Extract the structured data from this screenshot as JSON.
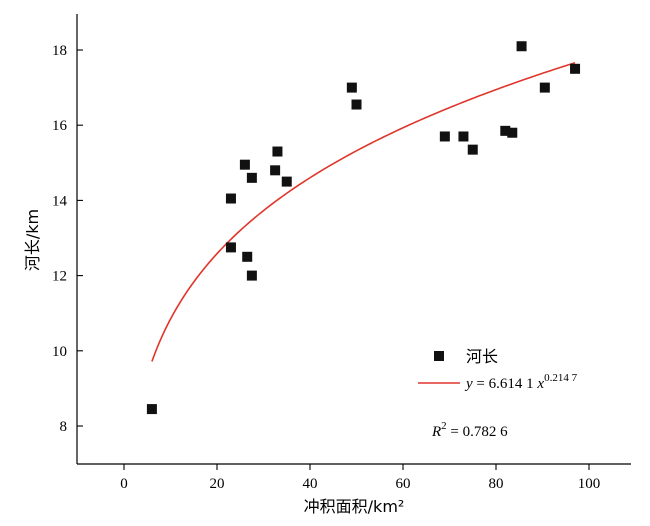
{
  "chart_data": {
    "type": "scatter",
    "xlabel": "冲积面积/km²",
    "ylabel": "河长/km",
    "xlim": [
      -10,
      110
    ],
    "ylim": [
      7,
      19
    ],
    "xticks": [
      0,
      20,
      40,
      60,
      80,
      100
    ],
    "yticks": [
      8,
      10,
      12,
      14,
      16,
      18
    ],
    "tick_labels_x": [
      "0",
      "20",
      "40",
      "60",
      "80",
      "100"
    ],
    "tick_labels_y": [
      "8",
      "10",
      "12",
      "14",
      "16",
      "18"
    ],
    "series": [
      {
        "name": "河长",
        "marker": "square",
        "color": "#111111",
        "points": [
          {
            "x": 6,
            "y": 8.45
          },
          {
            "x": 23,
            "y": 14.05
          },
          {
            "x": 23,
            "y": 12.75
          },
          {
            "x": 26,
            "y": 14.95
          },
          {
            "x": 26.5,
            "y": 12.5
          },
          {
            "x": 27.5,
            "y": 14.6
          },
          {
            "x": 27.5,
            "y": 12.0
          },
          {
            "x": 32.5,
            "y": 14.8
          },
          {
            "x": 33,
            "y": 15.3
          },
          {
            "x": 35,
            "y": 14.5
          },
          {
            "x": 49,
            "y": 17.0
          },
          {
            "x": 50,
            "y": 16.55
          },
          {
            "x": 69,
            "y": 15.7
          },
          {
            "x": 73,
            "y": 15.7
          },
          {
            "x": 75,
            "y": 15.35
          },
          {
            "x": 82,
            "y": 15.85
          },
          {
            "x": 83.5,
            "y": 15.8
          },
          {
            "x": 85.5,
            "y": 18.1
          },
          {
            "x": 90.5,
            "y": 17.0
          },
          {
            "x": 97,
            "y": 17.5
          }
        ]
      }
    ],
    "fit": {
      "label_prefix": "y",
      "label_mid": " = 6.614 1 ",
      "label_base": "x",
      "label_exp": "0.214 7",
      "a": 6.6141,
      "b": 0.2147,
      "x_range": [
        6,
        97
      ],
      "color": "#e0352b"
    },
    "r2": {
      "label": "R",
      "sup": "2",
      "value_text": " = 0.782 6"
    },
    "legend_position": "center-right"
  }
}
